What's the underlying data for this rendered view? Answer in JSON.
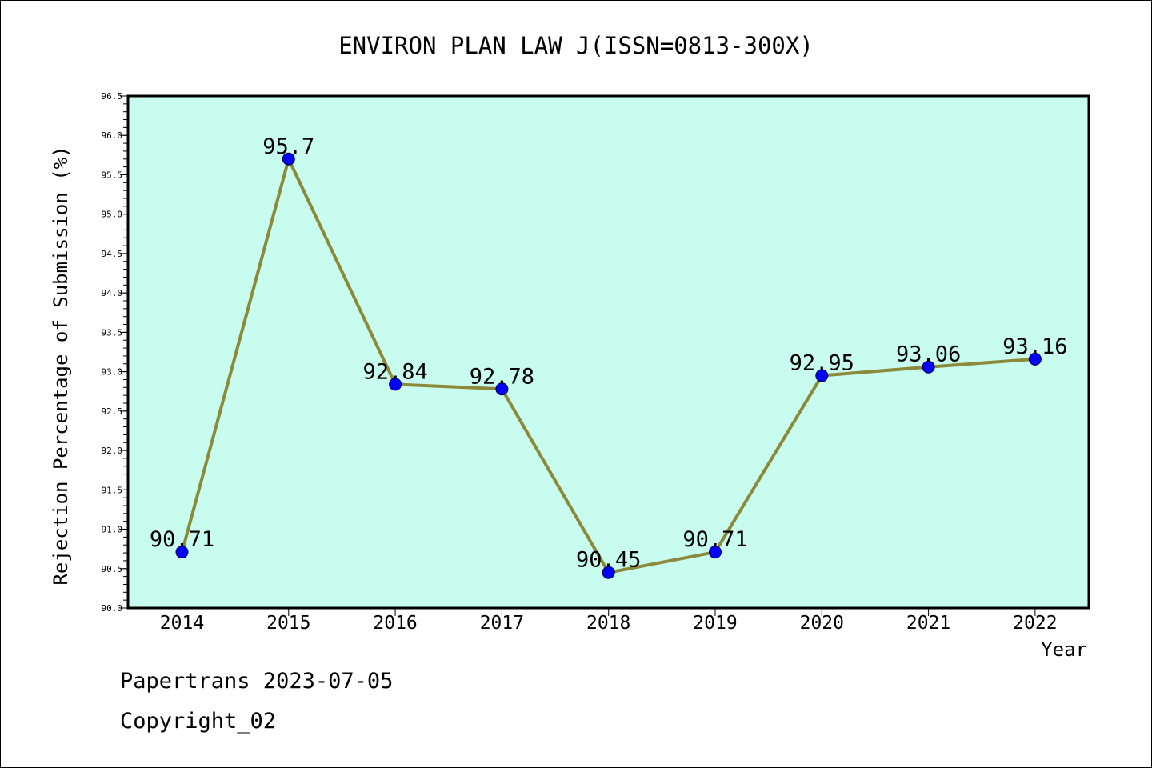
{
  "chart_data": {
    "type": "line",
    "title": "ENVIRON PLAN LAW J(ISSN=0813-300X)",
    "xlabel": "Year",
    "ylabel": "Rejection Percentage of Submission (%)",
    "categories": [
      "2014",
      "2015",
      "2016",
      "2017",
      "2018",
      "2019",
      "2020",
      "2021",
      "2022"
    ],
    "series": [
      {
        "values": [
          90.71,
          95.7,
          92.84,
          92.78,
          90.45,
          90.71,
          92.95,
          93.06,
          93.16
        ],
        "data_labels": [
          "90.71",
          "95.7",
          "92.84",
          "92.78",
          "90.45",
          "90.71",
          "92.95",
          "93.06",
          "93.16"
        ]
      }
    ],
    "ylim": [
      90.0,
      96.5
    ],
    "yticks": [
      "90.0",
      "90.5",
      "91.0",
      "91.5",
      "92.0",
      "92.5",
      "93.0",
      "93.5",
      "94.0",
      "94.5",
      "95.0",
      "95.5",
      "96.0",
      "96.5"
    ],
    "grid": false,
    "legend": "none",
    "colors": {
      "plot_background": "#c8fcee",
      "line": "#8b8a3a",
      "marker": "#0000ff",
      "axis": "#000000"
    }
  },
  "footer": {
    "line1": "Papertrans 2023-07-05",
    "line2": "Copyright_02"
  }
}
